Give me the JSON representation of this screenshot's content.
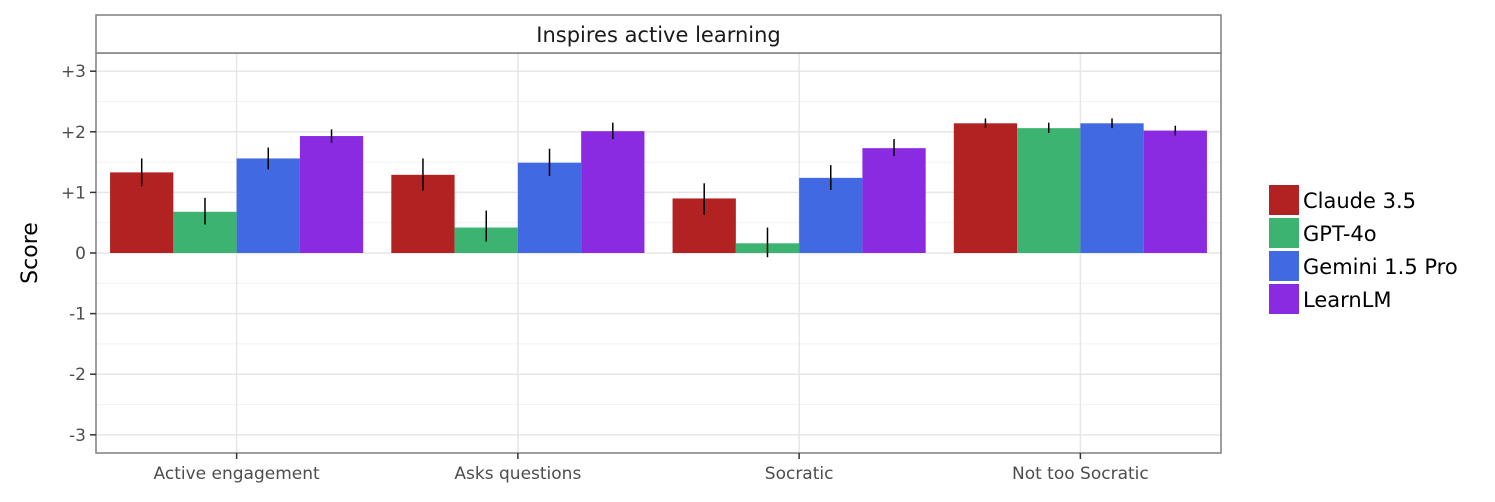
{
  "chart_data": {
    "type": "bar",
    "title": "Inspires active learning",
    "ylabel": "Score",
    "xlabel": "",
    "categories": [
      "Active engagement",
      "Asks questions",
      "Socratic",
      "Not too Socratic"
    ],
    "y_ticks": [
      3,
      2,
      1,
      0,
      -1,
      -2,
      -3
    ],
    "y_tick_labels": [
      "+3",
      "+2",
      "+1",
      "0",
      "-1",
      "-2",
      "-3"
    ],
    "ylim": [
      -3.3,
      3.3
    ],
    "grid": true,
    "legend_position": "right",
    "series": [
      {
        "name": "Claude 3.5",
        "color": "#b22222",
        "values": [
          1.33,
          1.29,
          0.9,
          2.14
        ],
        "err_low": [
          1.1,
          1.03,
          0.63,
          2.07
        ],
        "err_high": [
          1.56,
          1.56,
          1.15,
          2.22
        ]
      },
      {
        "name": "GPT-4o",
        "color": "#3cb371",
        "values": [
          0.68,
          0.42,
          0.16,
          2.06
        ],
        "err_low": [
          0.47,
          0.19,
          -0.07,
          1.98
        ],
        "err_high": [
          0.91,
          0.7,
          0.42,
          2.15
        ]
      },
      {
        "name": "Gemini 1.5 Pro",
        "color": "#4169e1",
        "values": [
          1.56,
          1.49,
          1.24,
          2.14
        ],
        "err_low": [
          1.38,
          1.27,
          1.04,
          2.06
        ],
        "err_high": [
          1.74,
          1.72,
          1.45,
          2.22
        ]
      },
      {
        "name": "LearnLM",
        "color": "#8a2be2",
        "values": [
          1.93,
          2.01,
          1.73,
          2.02
        ],
        "err_low": [
          1.82,
          1.88,
          1.6,
          1.94
        ],
        "err_high": [
          2.04,
          2.15,
          1.88,
          2.1
        ]
      }
    ]
  }
}
